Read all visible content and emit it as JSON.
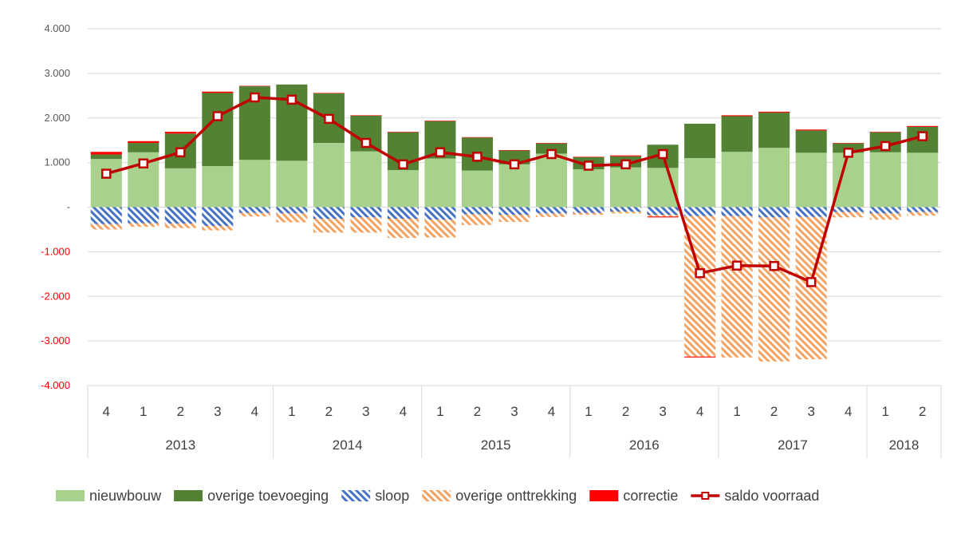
{
  "chart_data": {
    "type": "bar",
    "stacked": true,
    "ylim": [
      -4000,
      4000
    ],
    "yticks": [
      {
        "value": 4000,
        "label": "4.000"
      },
      {
        "value": 3000,
        "label": "3.000"
      },
      {
        "value": 2000,
        "label": "2.000"
      },
      {
        "value": 1000,
        "label": "1.000"
      },
      {
        "value": 0,
        "label": "-"
      },
      {
        "value": -1000,
        "label": "-1.000"
      },
      {
        "value": -2000,
        "label": "-2.000"
      },
      {
        "value": -3000,
        "label": "-3.000"
      },
      {
        "value": -4000,
        "label": "-4.000"
      }
    ],
    "categories": [
      "4",
      "1",
      "2",
      "3",
      "4",
      "1",
      "2",
      "3",
      "4",
      "1",
      "2",
      "3",
      "4",
      "1",
      "2",
      "3",
      "4",
      "1",
      "2",
      "3",
      "4",
      "1",
      "2"
    ],
    "years": [
      {
        "label": "2013",
        "start": 0,
        "count": 5
      },
      {
        "label": "2014",
        "start": 5,
        "count": 4
      },
      {
        "label": "2015",
        "start": 9,
        "count": 4
      },
      {
        "label": "2016",
        "start": 13,
        "count": 4
      },
      {
        "label": "2017",
        "start": 17,
        "count": 4
      },
      {
        "label": "2018",
        "start": 21,
        "count": 2
      }
    ],
    "series": [
      {
        "name": "nieuwbouw",
        "color": "#a9d18e",
        "pattern": "solid",
        "values": [
          1080,
          1230,
          870,
          920,
          1060,
          1040,
          1440,
          1250,
          830,
          1090,
          820,
          960,
          1200,
          850,
          890,
          880,
          1100,
          1240,
          1330,
          1220,
          1220,
          1230,
          1220
        ]
      },
      {
        "name": "overige toevoeging",
        "color": "#548235",
        "pattern": "solid",
        "values": [
          100,
          210,
          780,
          1640,
          1650,
          1710,
          1110,
          800,
          850,
          840,
          740,
          310,
          230,
          270,
          250,
          520,
          770,
          800,
          790,
          500,
          210,
          450,
          580
        ]
      },
      {
        "name": "sloop",
        "color": "#4472c4",
        "pattern": "hatch",
        "values": [
          -380,
          -360,
          -370,
          -420,
          -130,
          -140,
          -260,
          -230,
          -260,
          -280,
          -160,
          -170,
          -140,
          -130,
          -100,
          -170,
          -200,
          -200,
          -230,
          -220,
          -110,
          -140,
          -110
        ]
      },
      {
        "name": "overige onttrekking",
        "color": "#f4a261",
        "pattern": "hatch",
        "values": [
          -120,
          -80,
          -100,
          -100,
          -80,
          -200,
          -310,
          -340,
          -430,
          -400,
          -240,
          -160,
          -80,
          -40,
          -40,
          -40,
          -3150,
          -3170,
          -3230,
          -3190,
          -120,
          -140,
          -80
        ]
      },
      {
        "name": "correctie",
        "color": "#ff0000",
        "pattern": "solid",
        "values": [
          60,
          40,
          40,
          30,
          10,
          0,
          10,
          10,
          10,
          10,
          10,
          10,
          10,
          10,
          20,
          -20,
          -20,
          20,
          20,
          20,
          10,
          10,
          20
        ]
      },
      {
        "name": "saldo voorraad",
        "color": "#c00000",
        "type": "line",
        "values": [
          750,
          980,
          1230,
          2040,
          2460,
          2410,
          1980,
          1440,
          960,
          1230,
          1130,
          960,
          1190,
          930,
          960,
          1190,
          -1480,
          -1310,
          -1320,
          -1680,
          1220,
          1370,
          1590
        ]
      }
    ]
  }
}
